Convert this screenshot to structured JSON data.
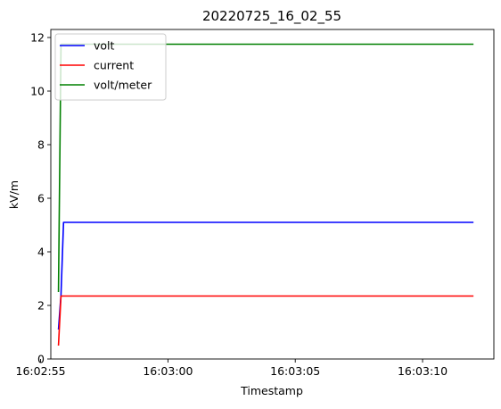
{
  "chart_data": {
    "type": "line",
    "title": "20220725_16_02_55",
    "xlabel": "Timestamp",
    "ylabel": "kV/m",
    "x_axis_kind": "time",
    "xlim": [
      "16:02:55.4",
      "16:03:12.8"
    ],
    "ylim": [
      0,
      12.3
    ],
    "x_ticks": [
      "16:02:55",
      "16:03:00",
      "16:03:05",
      "16:03:10"
    ],
    "y_ticks": [
      "0",
      "2",
      "4",
      "6",
      "8",
      "10",
      "12"
    ],
    "grid": false,
    "legend_position": "upper left",
    "series": [
      {
        "name": "volt",
        "color": "#0000ff",
        "x": [
          "16:02:55.7",
          "16:02:55.8",
          "16:02:55.9",
          "16:03:12.0"
        ],
        "y": [
          1.1,
          2.4,
          5.1,
          5.1
        ]
      },
      {
        "name": "current",
        "color": "#ff0000",
        "x": [
          "16:02:55.7",
          "16:02:55.8",
          "16:02:55.9",
          "16:03:12.0"
        ],
        "y": [
          0.5,
          2.35,
          2.35,
          2.35
        ]
      },
      {
        "name": "volt/meter",
        "color": "#008000",
        "x": [
          "16:02:55.7",
          "16:02:55.8",
          "16:02:55.9",
          "16:03:12.0"
        ],
        "y": [
          2.5,
          11.75,
          11.75,
          11.75
        ]
      }
    ]
  }
}
